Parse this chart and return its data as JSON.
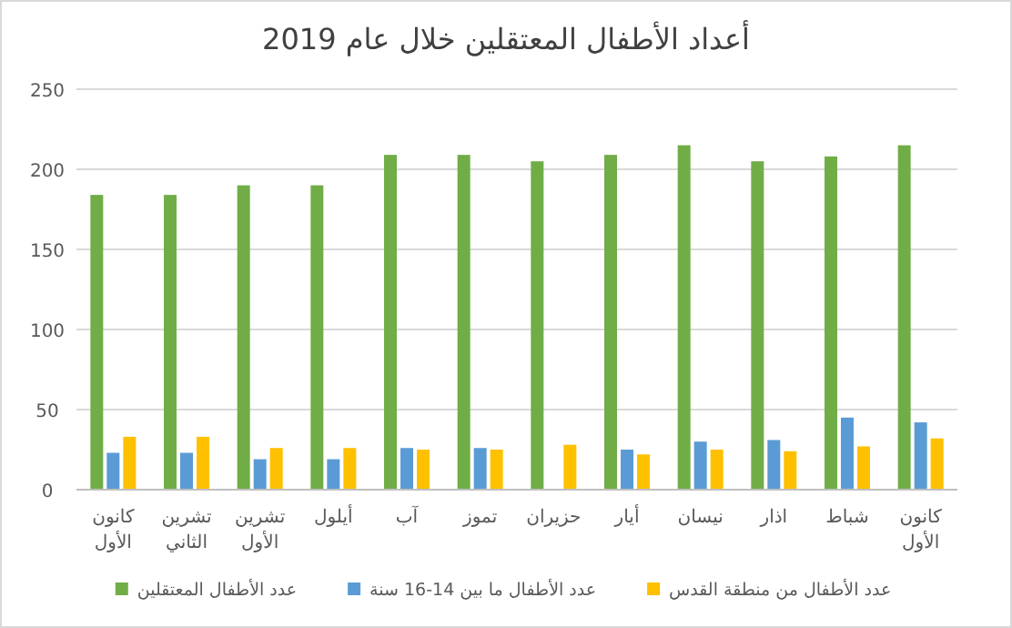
{
  "chart_data": {
    "type": "bar",
    "title": "أعداد الأطفال المعتقلين خلال عام 2019",
    "categories": [
      "كانون الأول",
      "تشرين الثاني",
      "تشرين الأول",
      "أيلول",
      "آب",
      "تموز",
      "حزيران",
      "أيار",
      "نيسان",
      "اذار",
      "شباط",
      "كانون الأول"
    ],
    "series": [
      {
        "name": "عدد الأطفال المعتقلين",
        "color": "#70ad47",
        "values": [
          184,
          184,
          190,
          190,
          209,
          209,
          205,
          209,
          215,
          205,
          208,
          215
        ]
      },
      {
        "name": "عدد الأطفال ما بين 14-16 سنة",
        "color": "#5b9bd5",
        "values": [
          23,
          23,
          19,
          19,
          26,
          26,
          null,
          25,
          30,
          31,
          45,
          42
        ]
      },
      {
        "name": "عدد الأطفال من منطقة القدس",
        "color": "#ffc000",
        "values": [
          33,
          33,
          26,
          26,
          25,
          25,
          28,
          22,
          25,
          24,
          27,
          32
        ]
      }
    ],
    "ylim": [
      0,
      250
    ],
    "yticks": [
      0,
      50,
      100,
      150,
      200,
      250
    ],
    "grid": "y",
    "legend": "bottom"
  }
}
